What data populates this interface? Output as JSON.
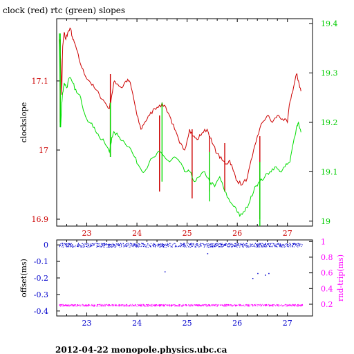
{
  "title": "clock (red) rtc (green) slopes",
  "footer": "2012-04-22 monopole.physics.ubc.ca",
  "colors": {
    "clock": "#cc0000",
    "rtc": "#00dd00",
    "offset": "#0000cc",
    "rndtrip": "#ff00ff",
    "frame": "#000000"
  },
  "chart_data": [
    {
      "type": "line",
      "title": "clock (red) rtc (green) slopes",
      "xlabel": "",
      "ylabel": "clockslope",
      "y2label": "",
      "xlim": [
        22.4,
        27.5
      ],
      "ylim": [
        16.89,
        17.19
      ],
      "y2lim": [
        18.99,
        19.41
      ],
      "xticks": [
        "23",
        "24",
        "25",
        "26",
        "27"
      ],
      "xtick_values": [
        23,
        24,
        25,
        26,
        27
      ],
      "yticks": [
        "16.9",
        "17",
        "17.1"
      ],
      "ytick_values": [
        16.9,
        17.0,
        17.1
      ],
      "y2ticks": [
        "19",
        "19.1",
        "19.2",
        "19.3",
        "19.4"
      ],
      "y2tick_values": [
        19.0,
        19.1,
        19.2,
        19.3,
        19.4
      ],
      "grid": false,
      "series": [
        {
          "name": "clock",
          "axis": "left",
          "x": [
            22.45,
            22.48,
            22.5,
            22.52,
            22.55,
            22.58,
            22.62,
            22.68,
            22.72,
            22.78,
            22.85,
            22.95,
            23.05,
            23.15,
            23.25,
            23.35,
            23.45,
            23.5,
            23.55,
            23.62,
            23.7,
            23.78,
            23.85,
            23.92,
            24.0,
            24.08,
            24.15,
            24.25,
            24.35,
            24.45,
            24.55,
            24.65,
            24.75,
            24.85,
            24.95,
            25.05,
            25.12,
            25.2,
            25.3,
            25.4,
            25.5,
            25.6,
            25.7,
            25.78,
            25.85,
            25.92,
            26.0,
            26.1,
            26.2,
            26.3,
            26.4,
            26.5,
            26.6,
            26.7,
            26.8,
            26.9,
            27.0,
            27.05,
            27.12,
            27.18,
            27.22,
            27.27
          ],
          "values": [
            17.16,
            17.13,
            17.08,
            17.15,
            17.17,
            17.16,
            17.17,
            17.175,
            17.16,
            17.15,
            17.13,
            17.11,
            17.1,
            17.09,
            17.08,
            17.07,
            17.06,
            17.08,
            17.1,
            17.095,
            17.09,
            17.1,
            17.1,
            17.08,
            17.05,
            17.03,
            17.04,
            17.05,
            17.06,
            17.065,
            17.065,
            17.05,
            17.03,
            17.01,
            17.0,
            17.03,
            17.02,
            17.015,
            17.025,
            17.03,
            17.01,
            16.995,
            16.985,
            16.98,
            16.985,
            16.97,
            16.955,
            16.95,
            16.96,
            16.99,
            17.02,
            17.04,
            17.05,
            17.04,
            17.05,
            17.045,
            17.04,
            17.07,
            17.09,
            17.11,
            17.1,
            17.085
          ],
          "spikes": [
            {
              "x": 22.47,
              "from": 17.04,
              "to": 17.16
            },
            {
              "x": 23.47,
              "from": 16.99,
              "to": 17.11
            },
            {
              "x": 24.45,
              "from": 16.94,
              "to": 17.05
            },
            {
              "x": 25.1,
              "from": 16.93,
              "to": 17.03
            },
            {
              "x": 25.45,
              "from": 16.94,
              "to": 17.02
            },
            {
              "x": 25.75,
              "from": 16.94,
              "to": 17.01
            },
            {
              "x": 26.45,
              "from": 16.9,
              "to": 17.02
            }
          ]
        },
        {
          "name": "rtc",
          "axis": "right",
          "x": [
            22.45,
            22.48,
            22.5,
            22.52,
            22.55,
            22.6,
            22.65,
            22.72,
            22.8,
            22.88,
            22.95,
            23.05,
            23.15,
            23.25,
            23.35,
            23.45,
            23.5,
            23.55,
            23.65,
            23.75,
            23.85,
            23.95,
            24.05,
            24.15,
            24.25,
            24.35,
            24.45,
            24.55,
            24.65,
            24.75,
            24.85,
            24.95,
            25.05,
            25.15,
            25.25,
            25.35,
            25.45,
            25.55,
            25.65,
            25.75,
            25.85,
            25.95,
            26.05,
            26.15,
            26.25,
            26.35,
            26.45,
            26.55,
            26.65,
            26.75,
            26.85,
            26.95,
            27.05,
            27.12,
            27.18,
            27.22,
            27.27
          ],
          "values": [
            19.38,
            19.19,
            19.24,
            19.26,
            19.28,
            19.27,
            19.29,
            19.28,
            19.26,
            19.25,
            19.22,
            19.2,
            19.19,
            19.17,
            19.16,
            19.14,
            19.17,
            19.18,
            19.17,
            19.16,
            19.15,
            19.13,
            19.11,
            19.1,
            19.12,
            19.13,
            19.14,
            19.13,
            19.12,
            19.13,
            19.12,
            19.1,
            19.1,
            19.08,
            19.09,
            19.1,
            19.08,
            19.07,
            19.09,
            19.06,
            19.04,
            19.03,
            19.01,
            19.02,
            19.04,
            19.07,
            19.08,
            19.09,
            19.1,
            19.11,
            19.1,
            19.11,
            19.12,
            19.16,
            19.19,
            19.2,
            19.18
          ],
          "spikes": [
            {
              "x": 22.47,
              "from": 19.19,
              "to": 19.38
            },
            {
              "x": 23.47,
              "from": 19.13,
              "to": 19.24
            },
            {
              "x": 24.5,
              "from": 19.08,
              "to": 19.24
            },
            {
              "x": 25.45,
              "from": 19.04,
              "to": 19.14
            },
            {
              "x": 26.45,
              "from": 18.99,
              "to": 19.12
            }
          ]
        }
      ]
    },
    {
      "type": "scatter",
      "xlabel": "",
      "ylabel": "offset(ms)",
      "y2label": "rnd-trip(ms)",
      "xlim": [
        22.4,
        27.5
      ],
      "ylim": [
        -0.43,
        0.03
      ],
      "y2lim": [
        0.05,
        1.02
      ],
      "xticks": [
        "23",
        "24",
        "25",
        "26",
        "27"
      ],
      "xtick_values": [
        23,
        24,
        25,
        26,
        27
      ],
      "yticks": [
        "0",
        "-0.1",
        "-0.2",
        "-0.3",
        "-0.4"
      ],
      "ytick_values": [
        0,
        -0.1,
        -0.2,
        -0.3,
        -0.4
      ],
      "y2ticks": [
        "1",
        "0.8",
        "0.6",
        "0.4",
        "0.2"
      ],
      "y2tick_values": [
        1.0,
        0.8,
        0.6,
        0.4,
        0.2
      ],
      "grid": false,
      "series": [
        {
          "name": "offset",
          "axis": "left",
          "x_range": [
            22.45,
            27.3
          ],
          "center": 0.0,
          "spread": 0.012,
          "outliers": [
            [
              24.55,
              -0.16
            ],
            [
              25.4,
              -0.05
            ],
            [
              26.3,
              -0.2
            ],
            [
              26.4,
              -0.17
            ],
            [
              26.55,
              -0.18
            ],
            [
              26.62,
              -0.17
            ]
          ]
        },
        {
          "name": "rnd-trip",
          "axis": "right",
          "x_range": [
            22.45,
            27.3
          ],
          "center": 0.19,
          "spread": 0.012
        }
      ]
    }
  ]
}
